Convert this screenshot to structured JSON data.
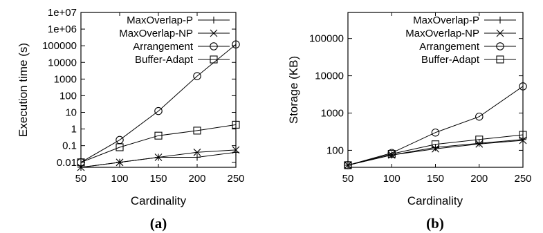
{
  "chart_data": [
    {
      "type": "line",
      "panel_label": "(a)",
      "xlabel": "Cardinality",
      "ylabel": "Execution time (s)",
      "y_scale": "log",
      "x": [
        50,
        100,
        150,
        200,
        250
      ],
      "xlim": [
        50,
        250
      ],
      "ylim": [
        0.005,
        10000000
      ],
      "x_ticks": [
        "50",
        "100",
        "150",
        "200",
        "250"
      ],
      "y_ticks": [
        {
          "label": "0.01",
          "value": 0.01
        },
        {
          "label": "0.1",
          "value": 0.1
        },
        {
          "label": "1",
          "value": 1
        },
        {
          "label": "10",
          "value": 10
        },
        {
          "label": "100",
          "value": 100
        },
        {
          "label": "1000",
          "value": 1000
        },
        {
          "label": "10000",
          "value": 10000
        },
        {
          "label": "100000",
          "value": 100000
        },
        {
          "label": "1e+06",
          "value": 1000000
        },
        {
          "label": "1e+07",
          "value": 10000000
        }
      ],
      "legend_position": "top-left",
      "series": [
        {
          "name": "MaxOverlap-P",
          "marker": "plus",
          "values": [
            0.005,
            0.01,
            0.02,
            0.02,
            0.04
          ]
        },
        {
          "name": "MaxOverlap-NP",
          "marker": "cross",
          "values": [
            0.005,
            0.01,
            0.02,
            0.04,
            0.055
          ]
        },
        {
          "name": "Arrangement",
          "marker": "circle",
          "values": [
            0.01,
            0.22,
            12,
            1500,
            120000
          ]
        },
        {
          "name": "Buffer-Adapt",
          "marker": "square",
          "values": [
            0.01,
            0.08,
            0.4,
            0.8,
            1.8
          ]
        }
      ]
    },
    {
      "type": "line",
      "panel_label": "(b)",
      "xlabel": "Cardinality",
      "ylabel": "Storage (KB)",
      "y_scale": "log",
      "x": [
        50,
        100,
        150,
        200,
        250
      ],
      "xlim": [
        50,
        250
      ],
      "ylim": [
        35,
        500000
      ],
      "x_ticks": [
        "50",
        "100",
        "150",
        "200",
        "250"
      ],
      "y_ticks": [
        {
          "label": "100",
          "value": 100
        },
        {
          "label": "1000",
          "value": 1000
        },
        {
          "label": "10000",
          "value": 10000
        },
        {
          "label": "100000",
          "value": 100000
        }
      ],
      "legend_position": "top-left",
      "series": [
        {
          "name": "MaxOverlap-P",
          "marker": "plus",
          "values": [
            40,
            75,
            120,
            155,
            195
          ]
        },
        {
          "name": "MaxOverlap-NP",
          "marker": "cross",
          "values": [
            40,
            75,
            110,
            148,
            185
          ]
        },
        {
          "name": "Arrangement",
          "marker": "circle",
          "values": [
            40,
            85,
            300,
            800,
            5200
          ]
        },
        {
          "name": "Buffer-Adapt",
          "marker": "square",
          "values": [
            40,
            80,
            145,
            195,
            260
          ]
        }
      ]
    }
  ]
}
